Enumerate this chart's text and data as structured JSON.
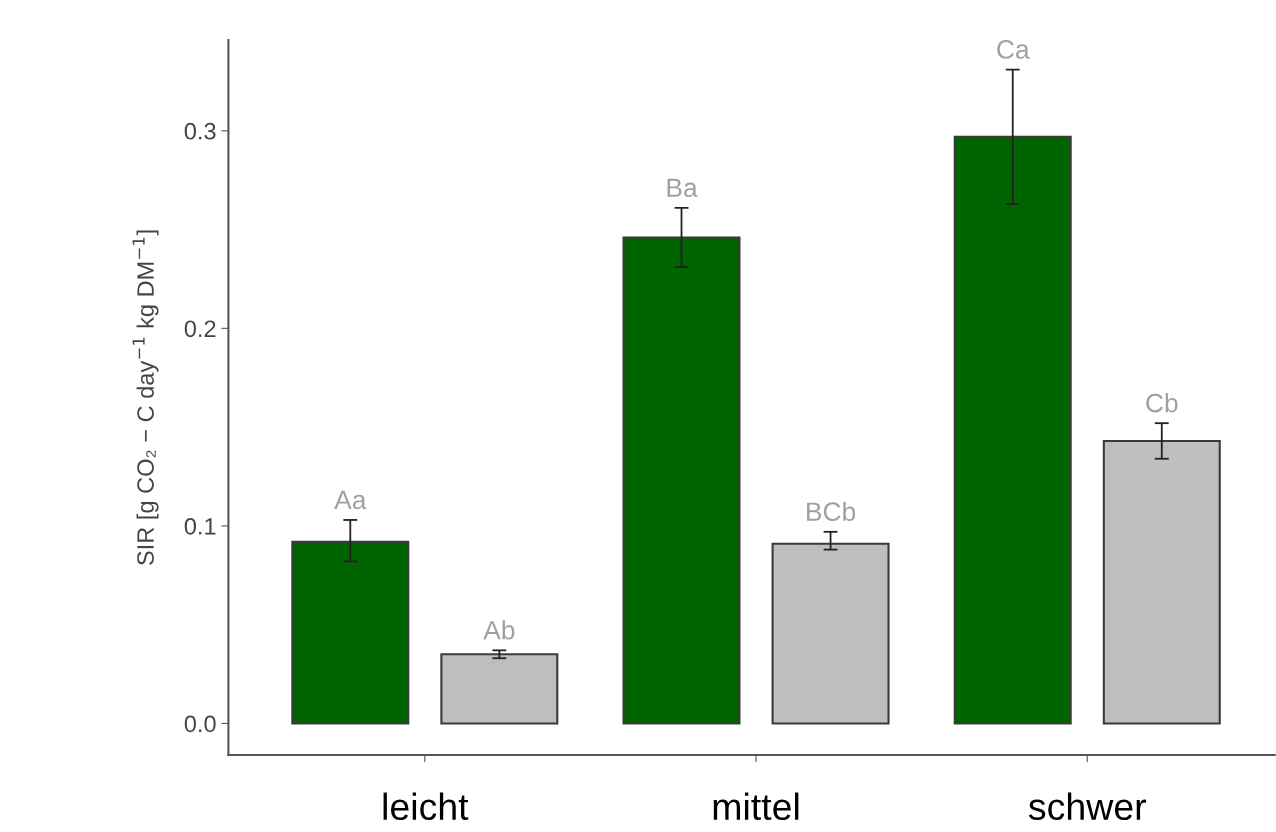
{
  "chart_data": {
    "type": "bar",
    "ylabel": "SIR [g CO₂ − C day$^{−1}$ kg DM$^{−1}$]",
    "categories": [
      "leicht",
      "mittel",
      "schwer"
    ],
    "series": [
      {
        "color": "#006400",
        "values": [
          0.092,
          0.246,
          0.297
        ],
        "errors": [
          [
            0.082,
            0.103
          ],
          [
            0.231,
            0.261
          ],
          [
            0.263,
            0.331
          ]
        ],
        "value_labels": [
          "Aa",
          "Ba",
          "Ca"
        ]
      },
      {
        "color": "#bebebe",
        "values": [
          0.035,
          0.091,
          0.143
        ],
        "errors": [
          [
            0.033,
            0.037
          ],
          [
            0.088,
            0.097
          ],
          [
            0.134,
            0.152
          ]
        ],
        "value_labels": [
          "Ab",
          "BCb",
          "Cb"
        ]
      }
    ],
    "ylim": [
      -0.016,
      0.346
    ],
    "yticks": [
      {
        "value": 0,
        "label": "0.0"
      },
      0.1,
      0.2,
      0.3
    ],
    "grid": false,
    "legend": false
  }
}
